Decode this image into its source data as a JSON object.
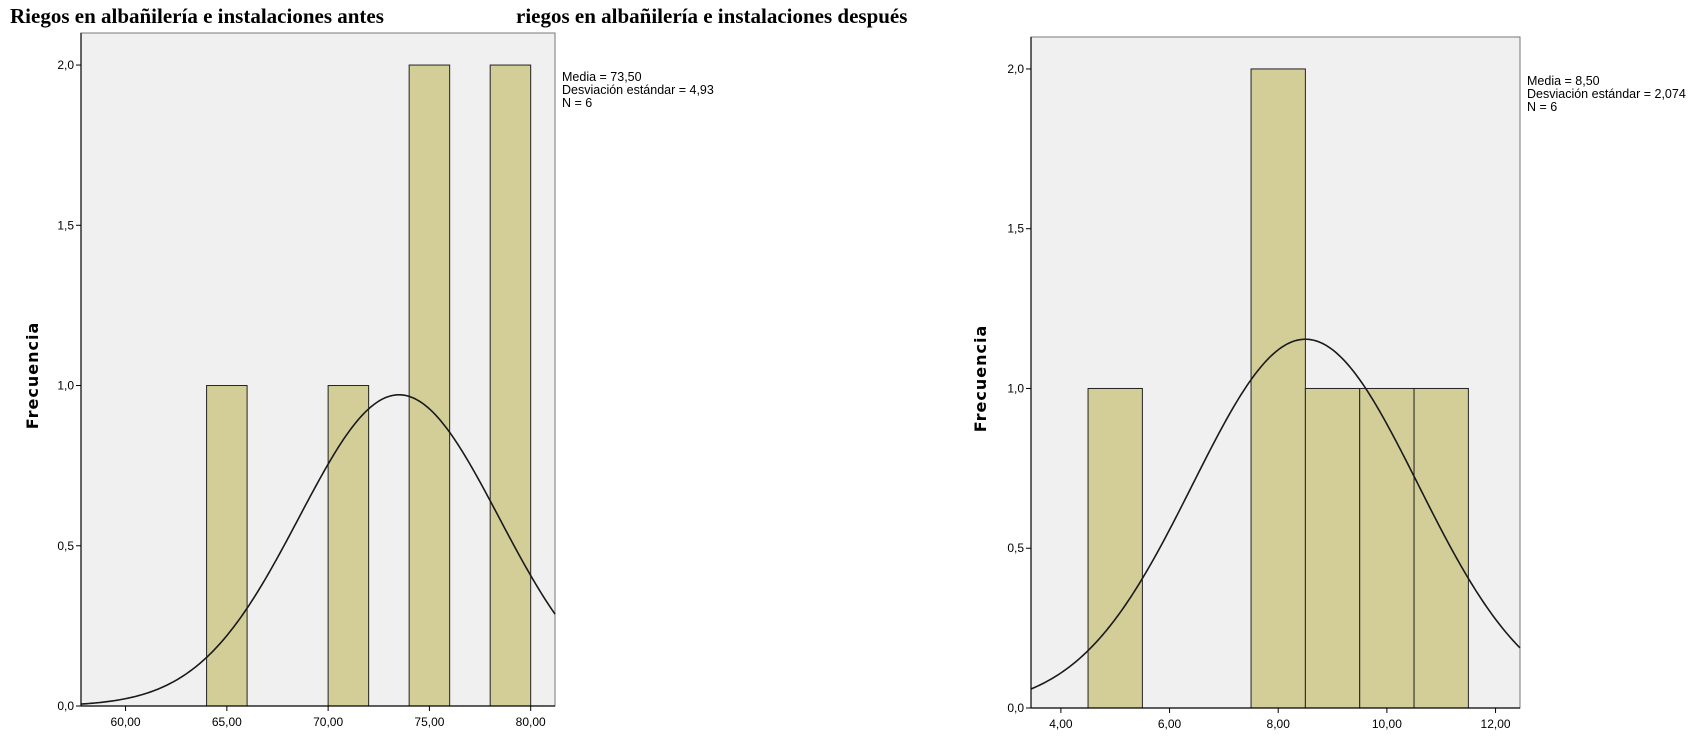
{
  "titles": {
    "left": "Riegos en albañilería e instalaciones antes",
    "right": "riegos en albañilería e instalaciones después"
  },
  "chart_data": [
    {
      "type": "bar",
      "subtype": "histogram",
      "title": "Riegos en albañilería e instalaciones antes",
      "ylabel": "Frecuencia",
      "xlabel": "",
      "xlim": [
        57.8,
        81.2
      ],
      "ylim": [
        0,
        2.1
      ],
      "x_ticks": [
        {
          "v": 60,
          "label": "60,00"
        },
        {
          "v": 65,
          "label": "65,00"
        },
        {
          "v": 70,
          "label": "70,00"
        },
        {
          "v": 75,
          "label": "75,00"
        },
        {
          "v": 80,
          "label": "80,00"
        }
      ],
      "y_ticks": [
        {
          "v": 0,
          "label": "0,0"
        },
        {
          "v": 0.5,
          "label": "0,5"
        },
        {
          "v": 1.0,
          "label": "1,0"
        },
        {
          "v": 1.5,
          "label": "1,5"
        },
        {
          "v": 2.0,
          "label": "2,0"
        }
      ],
      "bins": [
        {
          "from": 64,
          "to": 66,
          "count": 1
        },
        {
          "from": 70,
          "to": 72,
          "count": 1
        },
        {
          "from": 74,
          "to": 76,
          "count": 2
        },
        {
          "from": 78,
          "to": 80,
          "count": 2
        }
      ],
      "normal_curve": {
        "mean": 73.5,
        "sd": 4.93,
        "n": 6,
        "bin_width": 2
      },
      "stats_lines": [
        "Media = 73,50",
        "Desviación estándar = 4,93",
        "N = 6"
      ],
      "bar_color": "#d3ce98",
      "plot_background": "#f0f0f0",
      "legend_position": "top-right, outside plot"
    },
    {
      "type": "bar",
      "subtype": "histogram",
      "title": "riegos en albañilería e instalaciones después",
      "ylabel": "Frecuencia",
      "xlabel": "",
      "xlim": [
        3.45,
        12.45
      ],
      "ylim": [
        0,
        2.1
      ],
      "x_ticks": [
        {
          "v": 4,
          "label": "4,00"
        },
        {
          "v": 6,
          "label": "6,00"
        },
        {
          "v": 8,
          "label": "8,00"
        },
        {
          "v": 10,
          "label": "10,00"
        },
        {
          "v": 12,
          "label": "12,00"
        }
      ],
      "y_ticks": [
        {
          "v": 0,
          "label": "0,0"
        },
        {
          "v": 0.5,
          "label": "0,5"
        },
        {
          "v": 1.0,
          "label": "1,0"
        },
        {
          "v": 1.5,
          "label": "1,5"
        },
        {
          "v": 2.0,
          "label": "2,0"
        }
      ],
      "bins": [
        {
          "from": 4.5,
          "to": 5.5,
          "count": 1
        },
        {
          "from": 7.5,
          "to": 8.5,
          "count": 2
        },
        {
          "from": 8.5,
          "to": 9.5,
          "count": 1
        },
        {
          "from": 9.5,
          "to": 10.5,
          "count": 1
        },
        {
          "from": 10.5,
          "to": 11.5,
          "count": 1
        }
      ],
      "normal_curve": {
        "mean": 8.5,
        "sd": 2.074,
        "n": 6,
        "bin_width": 1
      },
      "stats_lines": [
        "Media = 8,50",
        "Desviación estándar = 2,074",
        "N = 6"
      ],
      "bar_color": "#d3ce98",
      "plot_background": "#f0f0f0",
      "legend_position": "top-right, outside plot"
    }
  ]
}
